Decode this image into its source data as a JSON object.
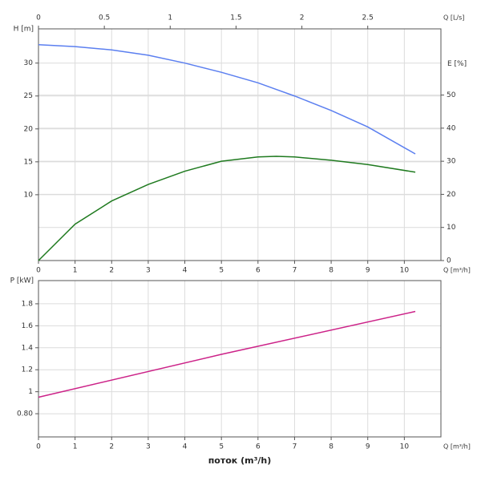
{
  "chart_data": [
    {
      "type": "line",
      "x": [
        0,
        1,
        2,
        3,
        4,
        5,
        6,
        6.5,
        7,
        8,
        9,
        10.3
      ],
      "xlabel": "Q [m³/h]",
      "xlim": [
        0,
        11
      ],
      "xticks": [
        0,
        1,
        2,
        3,
        4,
        5,
        6,
        7,
        8,
        9,
        10
      ],
      "x2label": "Q [L/s]",
      "x2lim": [
        0,
        3.0556
      ],
      "x2ticks": [
        0,
        0.5,
        1,
        1.5,
        2,
        2.5
      ],
      "ylabel": "H [m]",
      "ylim": [
        0,
        35.2
      ],
      "yticks": [
        10,
        15,
        20,
        25,
        30
      ],
      "y2label": "E [%]",
      "y2lim": [
        0,
        70
      ],
      "y2ticks": [
        0,
        10,
        20,
        30,
        40,
        50
      ],
      "grid": true,
      "series": [
        {
          "name": "H",
          "color": "#5b7ff0",
          "axis": "y",
          "values": [
            32.8,
            32.5,
            32.0,
            31.2,
            30.0,
            28.6,
            27.0,
            26.0,
            25.0,
            22.8,
            20.3,
            16.2
          ]
        },
        {
          "name": "E",
          "color": "#1f7a1f",
          "axis": "y2",
          "values": [
            0,
            11,
            18,
            23,
            27,
            30,
            31.3,
            31.5,
            31.3,
            30.3,
            29,
            26.7
          ]
        }
      ]
    },
    {
      "type": "line",
      "x": [
        0,
        5,
        10.3
      ],
      "xlabel": "Q [m³/h]",
      "xlim": [
        0,
        11
      ],
      "xticks": [
        0,
        1,
        2,
        3,
        4,
        5,
        6,
        7,
        8,
        9,
        10
      ],
      "ylabel": "P [kW]",
      "ylim": [
        0.589,
        2.011
      ],
      "yticks": [
        {
          "value": 0.8,
          "label": "0.80"
        },
        1,
        1.2,
        1.4,
        1.6,
        1.8
      ],
      "grid": true,
      "caption": "поток (m³/h)",
      "series": [
        {
          "name": "P",
          "color": "#cc2288",
          "axis": "y",
          "values": [
            0.95,
            1.34,
            1.73
          ]
        }
      ]
    }
  ]
}
